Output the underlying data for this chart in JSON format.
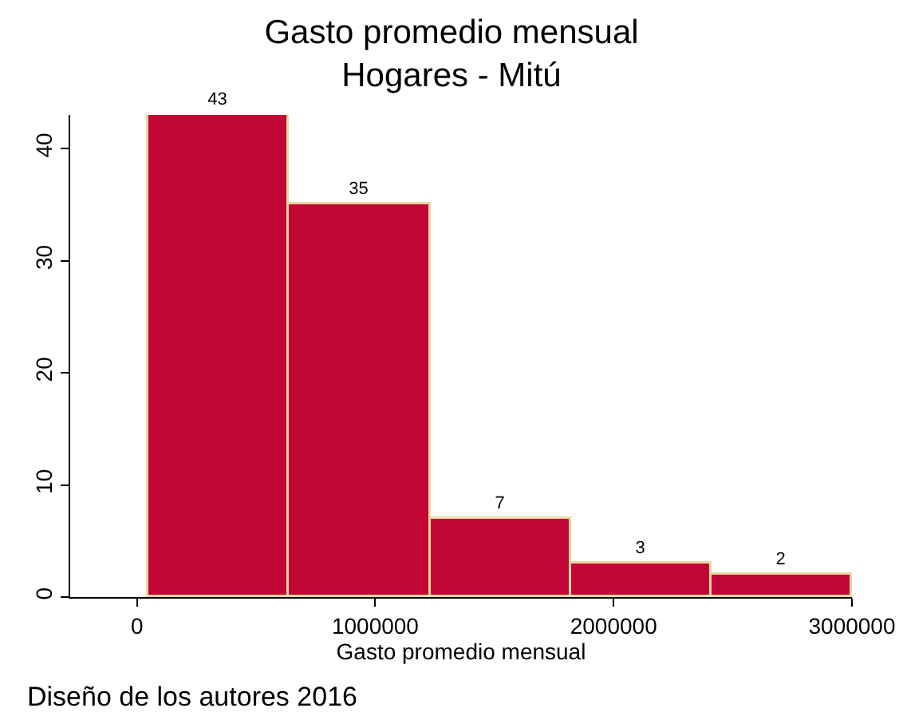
{
  "chart_data": {
    "type": "histogram",
    "title": "Gasto promedio mensual\nHogares - Mitú",
    "xlabel": "Gasto promedio mensual",
    "bins": [
      50000,
      640000,
      1230000,
      1820000,
      2410000,
      3000000
    ],
    "values": [
      43,
      35,
      7,
      3,
      2
    ],
    "color": "#c10534",
    "xlim": [
      -280000,
      3000000
    ],
    "xticks": [
      0,
      1000000,
      2000000,
      3000000
    ],
    "ylim": [
      0,
      43
    ],
    "yticks": [
      0,
      10,
      20,
      30,
      40
    ],
    "data_labels": true,
    "grid": false,
    "annotations": [
      "Diseño de los autores 2016"
    ]
  }
}
